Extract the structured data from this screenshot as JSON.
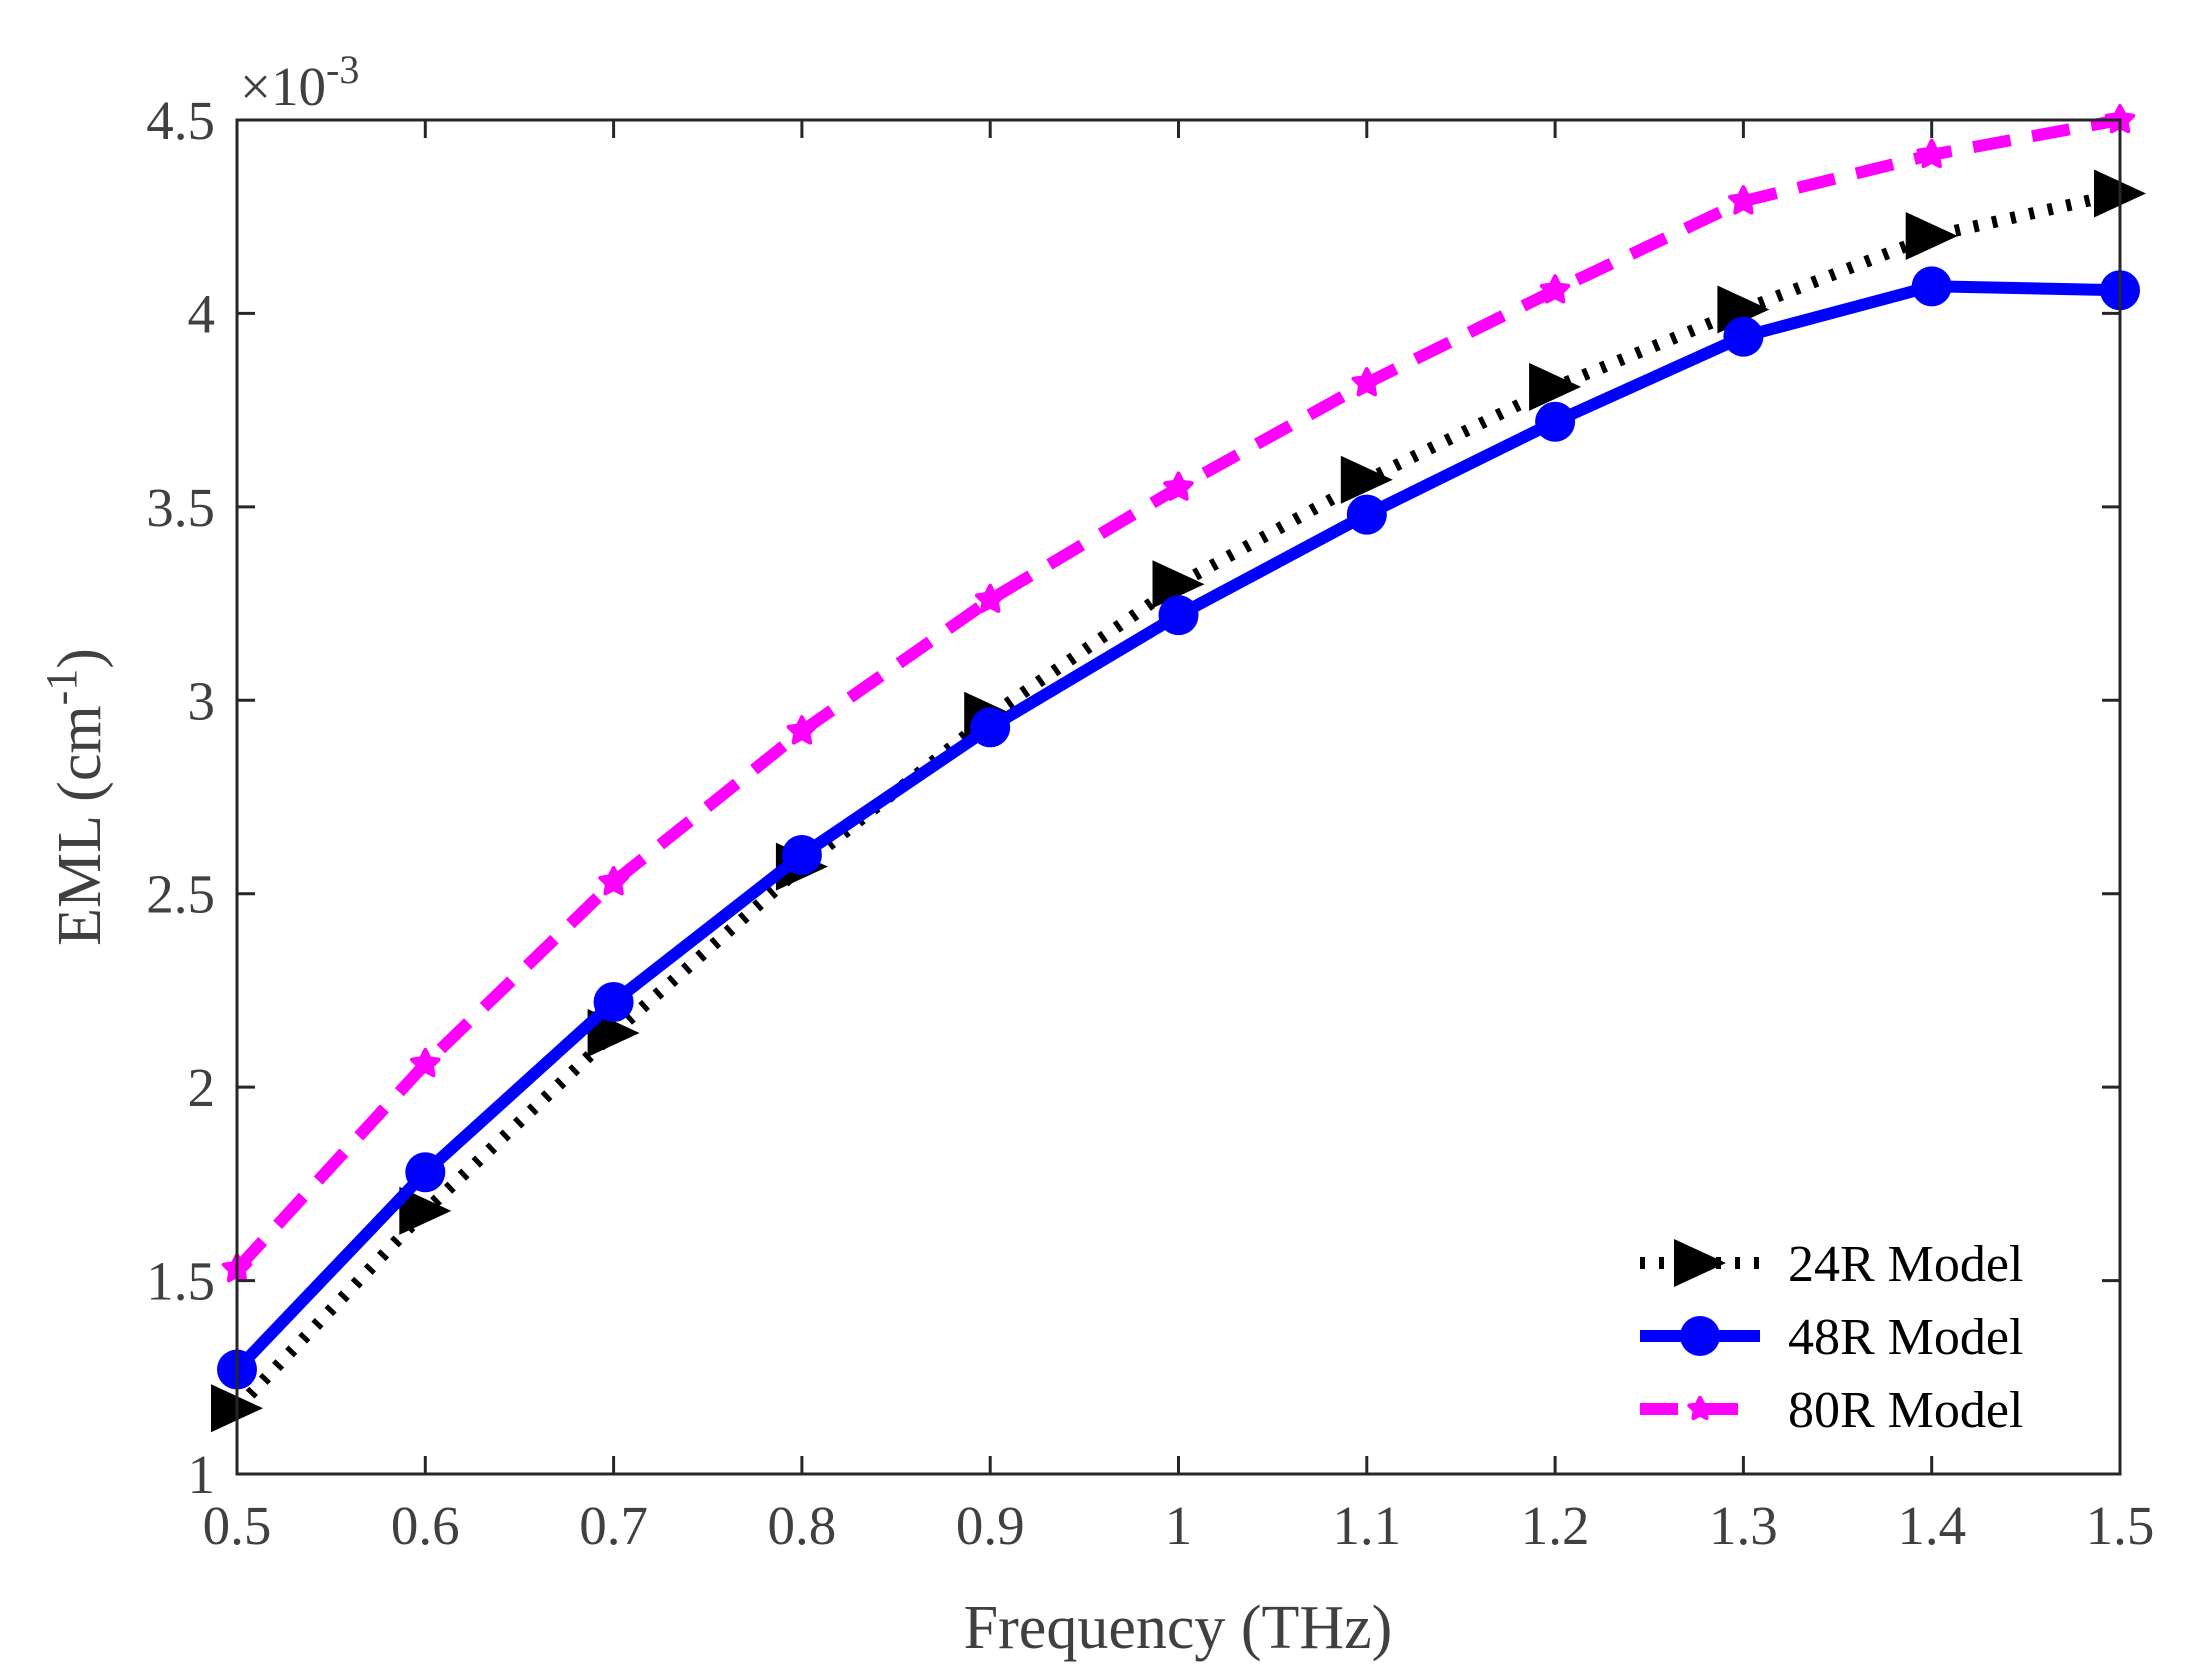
{
  "chart_data": {
    "type": "line",
    "title": "",
    "xlabel": "Frequency (THz)",
    "ylabel_main": "EML (cm",
    "ylabel_sup": "-1",
    "ylabel_close": ")",
    "y_scale_base": "×10",
    "y_scale_exp": "-3",
    "xlim": [
      0.5,
      1.5
    ],
    "ylim": [
      1,
      4.5
    ],
    "x": [
      0.5,
      0.6,
      0.7,
      0.8,
      0.9,
      1.0,
      1.1,
      1.2,
      1.3,
      1.4,
      1.5
    ],
    "x_tick_labels": [
      "0.5",
      "0.6",
      "0.7",
      "0.8",
      "0.9",
      "1",
      "1.1",
      "1.2",
      "1.3",
      "1.4",
      "1.5"
    ],
    "y_ticks": [
      1,
      1.5,
      2,
      2.5,
      3,
      3.5,
      4,
      4.5
    ],
    "y_tick_labels": [
      "1",
      "1.5",
      "2",
      "2.5",
      "3",
      "3.5",
      "4",
      "4.5"
    ],
    "grid": false,
    "legend_position": "bottom-right",
    "series": [
      {
        "name": "24R Model",
        "color": "#000000",
        "line_style": "dotted",
        "marker": "triangle-right",
        "values": [
          1.17,
          1.68,
          2.14,
          2.57,
          2.96,
          3.3,
          3.57,
          3.81,
          4.01,
          4.2,
          4.31
        ]
      },
      {
        "name": "48R Model",
        "color": "#0000ff",
        "line_style": "solid",
        "marker": "circle",
        "values": [
          1.27,
          1.78,
          2.22,
          2.6,
          2.93,
          3.22,
          3.48,
          3.72,
          3.94,
          4.07,
          4.06
        ]
      },
      {
        "name": "80R Model",
        "color": "#ff00ff",
        "line_style": "dashed",
        "marker": "star",
        "values": [
          1.53,
          2.06,
          2.53,
          2.92,
          3.26,
          3.55,
          3.82,
          4.06,
          4.29,
          4.41,
          4.5
        ]
      }
    ]
  }
}
